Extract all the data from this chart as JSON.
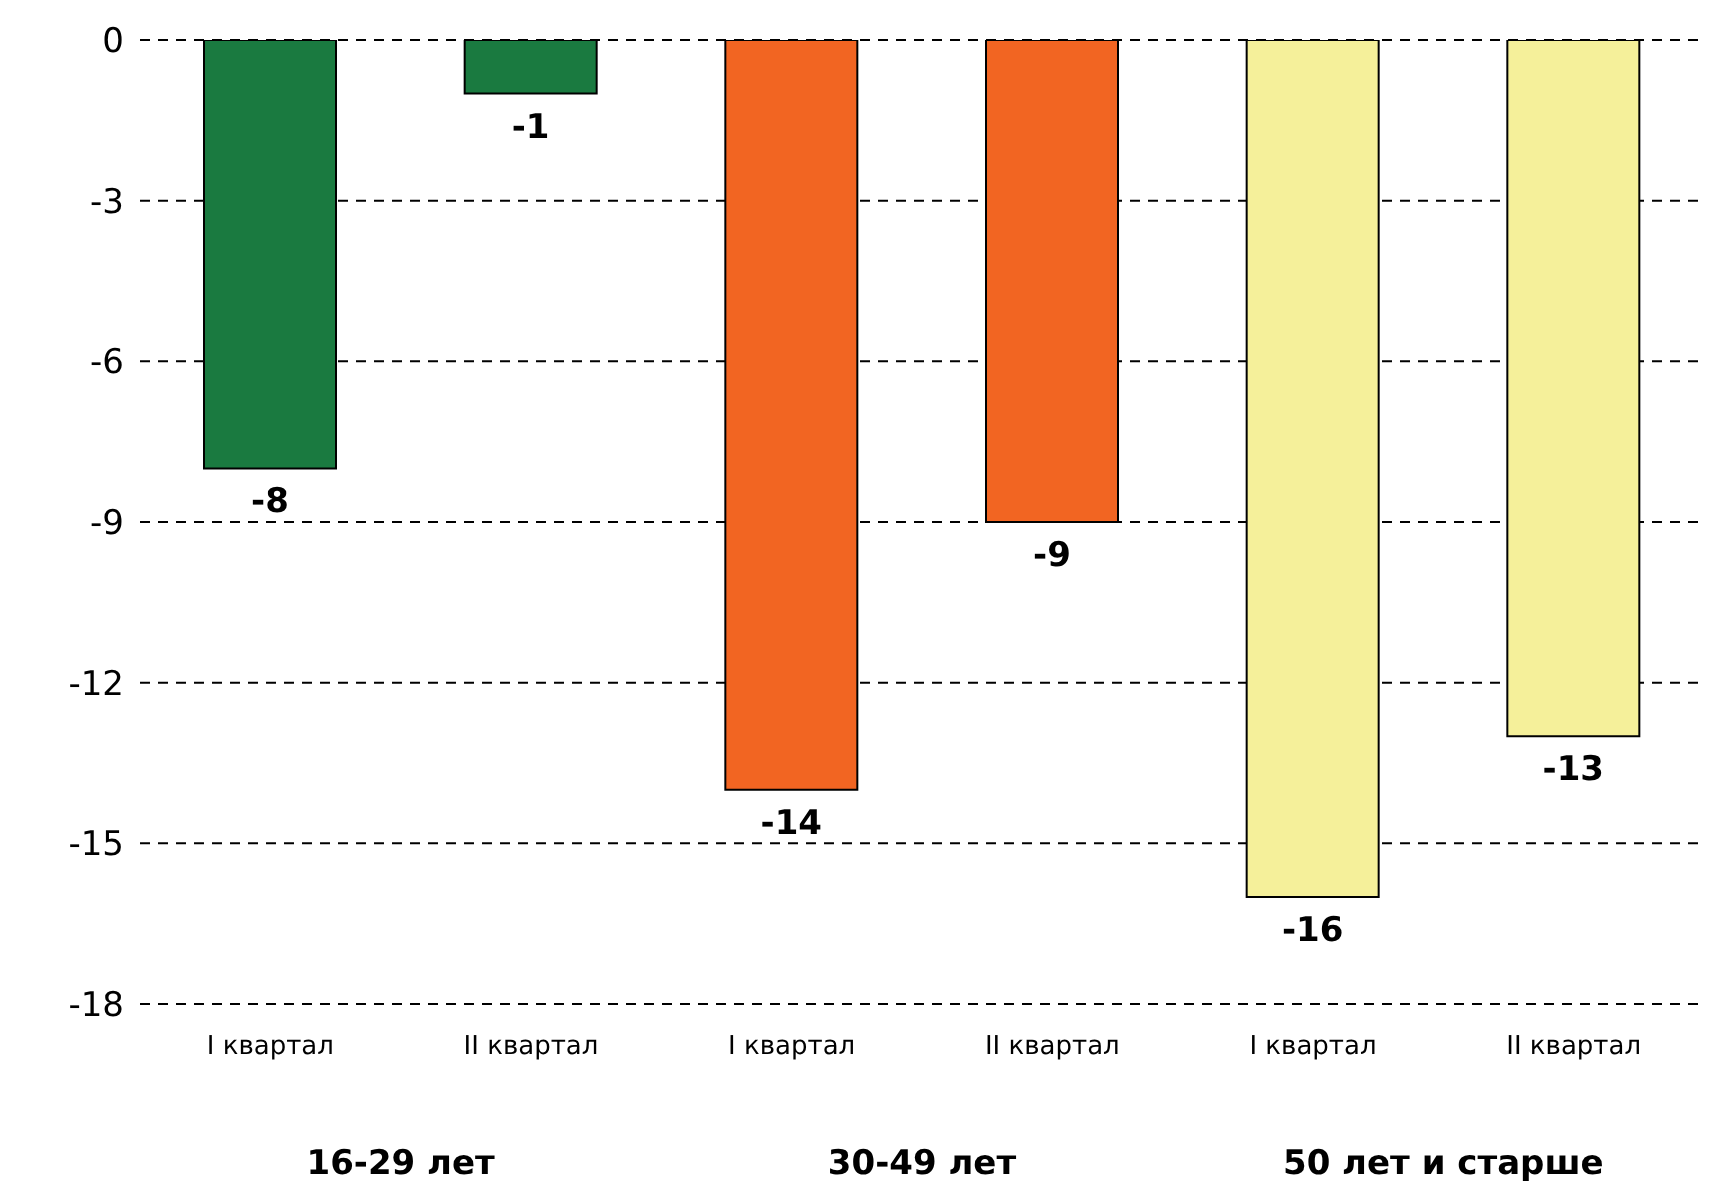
{
  "chart_data": {
    "type": "bar",
    "categories": [
      "I квартал",
      "II квартал",
      "I квартал",
      "II квартал",
      "I квартал",
      "II квартал"
    ],
    "values": [
      -8,
      -1,
      -14,
      -9,
      -16,
      -13
    ],
    "colors": [
      "#1a7a40",
      "#1a7a40",
      "#f26522",
      "#f26522",
      "#f5f09a",
      "#f5f09a"
    ],
    "ylim": [
      -18,
      0
    ],
    "yticks": [
      -18,
      -15,
      -12,
      -9,
      -6,
      -3,
      0
    ],
    "grid": "y",
    "data_labels": true,
    "annotations": [
      "16-29 лет",
      "30-49 лет",
      "50 лет и старше"
    ]
  }
}
